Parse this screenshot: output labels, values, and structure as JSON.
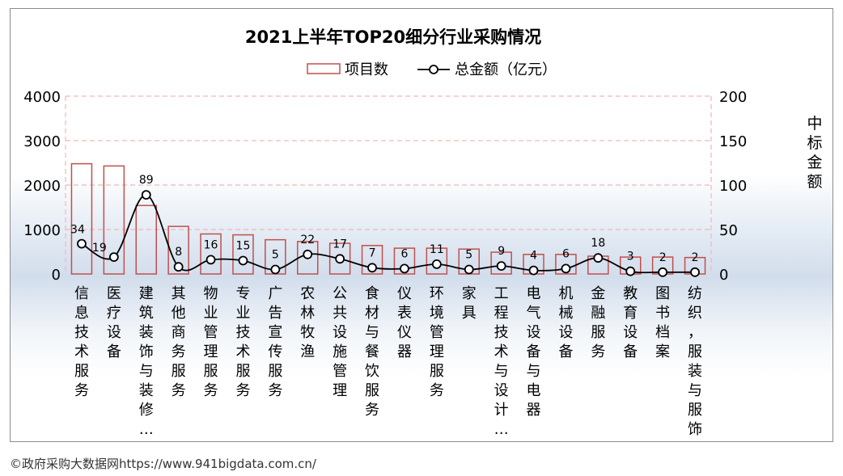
{
  "chart_data": {
    "type": "bar",
    "title": "2021上半年TOP20细分行业采购情况",
    "categories": [
      "信息技术服务",
      "医疗设备",
      "建筑装饰与装修…",
      "其他商务服务",
      "物业管理服务",
      "专业技术服务",
      "广告宣传服务",
      "农林牧渔",
      "公共设施管理",
      "食材与餐饮服务",
      "仪表仪器",
      "环境管理服务",
      "家具",
      "工程技术与设计…",
      "电气设备与电器",
      "机械设备",
      "金融服务",
      "教育设备",
      "图书档案",
      "纺织，服装与服饰"
    ],
    "series": [
      {
        "name": "项目数",
        "type": "bar",
        "axis": "left",
        "values": [
          2480,
          2430,
          1540,
          1070,
          900,
          880,
          770,
          730,
          690,
          640,
          580,
          580,
          560,
          490,
          440,
          440,
          400,
          380,
          380,
          370
        ]
      },
      {
        "name": "总金额（亿元）",
        "type": "line",
        "axis": "right",
        "values": [
          34,
          19,
          89,
          8,
          16,
          15,
          5,
          22,
          17,
          7,
          6,
          11,
          5,
          9,
          4,
          6,
          18,
          3,
          2,
          2
        ],
        "labels": [
          "34",
          "19",
          "89",
          "8",
          "16",
          "15",
          "5",
          "22",
          "17",
          "7",
          "6",
          "11",
          "5",
          "9",
          "4",
          "6",
          "18",
          "3",
          "2",
          "2"
        ]
      }
    ],
    "yleft": {
      "min": 0,
      "max": 4000,
      "ticks": [
        "0",
        "1000",
        "2000",
        "3000",
        "4000"
      ]
    },
    "yright": {
      "min": 0,
      "max": 200,
      "ticks": [
        "0",
        "50",
        "100",
        "150",
        "200"
      ],
      "label": "中标金额"
    },
    "legend": {
      "position": "top",
      "entries": [
        "项目数",
        "总金额（亿元）"
      ]
    },
    "grid": true,
    "colors": {
      "bar_stroke": "#c0504d",
      "line": "#000000",
      "marker_fill": "#ffffff",
      "grid": "#f2b6b6",
      "text": "#000000"
    }
  },
  "footer": {
    "source": "©政府采购大数据网https://www.941bigdata.com.cn/"
  }
}
